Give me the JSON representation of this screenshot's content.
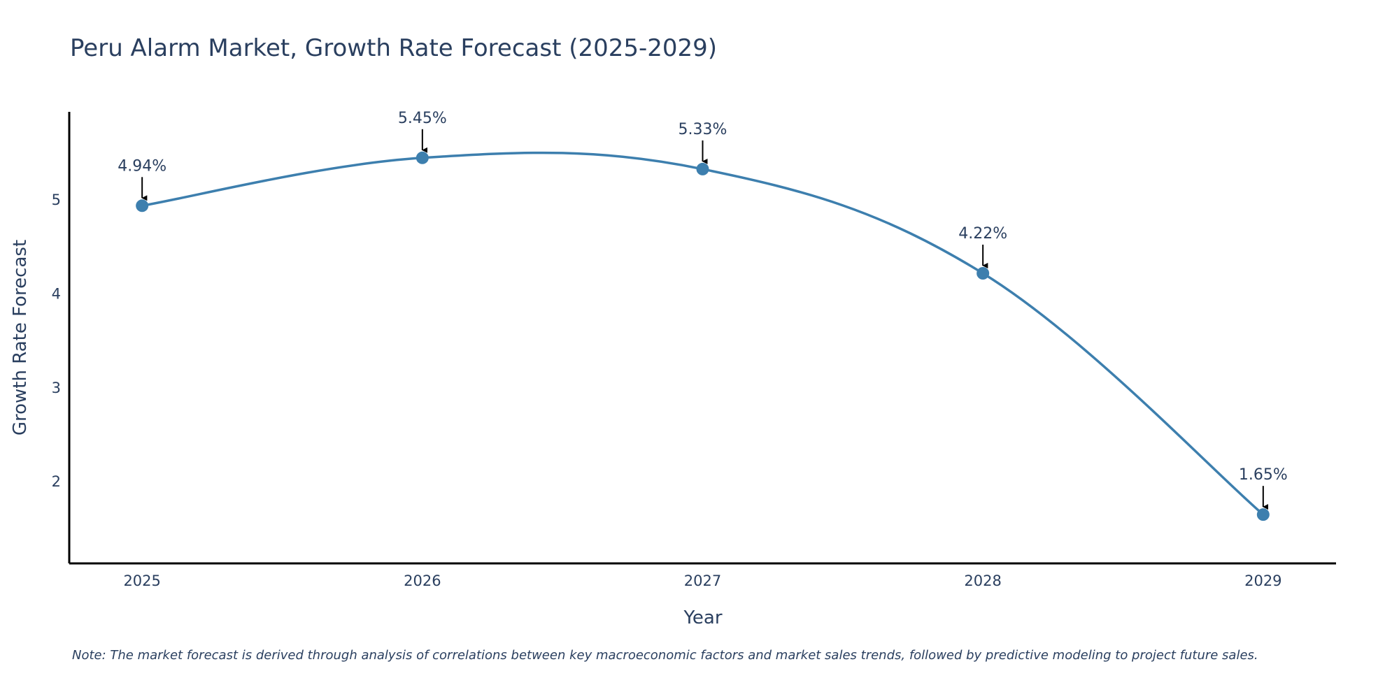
{
  "chart_data": {
    "type": "line",
    "title": "Peru Alarm Market, Growth Rate Forecast (2025-2029)",
    "xlabel": "Year",
    "ylabel": "Growth Rate Forecast",
    "categories": [
      "2025",
      "2026",
      "2027",
      "2028",
      "2029"
    ],
    "series": [
      {
        "name": "Growth Rate Forecast",
        "values": [
          4.94,
          5.45,
          5.33,
          4.22,
          1.65
        ],
        "labels": [
          "4.94%",
          "5.45%",
          "5.33%",
          "4.22%",
          "1.65%"
        ],
        "color": "#3d7fae"
      }
    ],
    "yticks": [
      2,
      3,
      4,
      5
    ],
    "ytick_labels": [
      "2",
      "3",
      "4",
      "5"
    ],
    "ylim": [
      1.13,
      5.94
    ],
    "xlim": [
      -0.26,
      4.26
    ],
    "grid": false,
    "line_shape": "spline",
    "note": "Note: The market forecast is derived through analysis of correlations between key macroeconomic factors and market sales trends, followed by predictive modeling to project future sales."
  },
  "colors": {
    "line": "#3d7fae",
    "axis": "#000000",
    "text": "#2a3f5f",
    "arrow": "#000000"
  }
}
